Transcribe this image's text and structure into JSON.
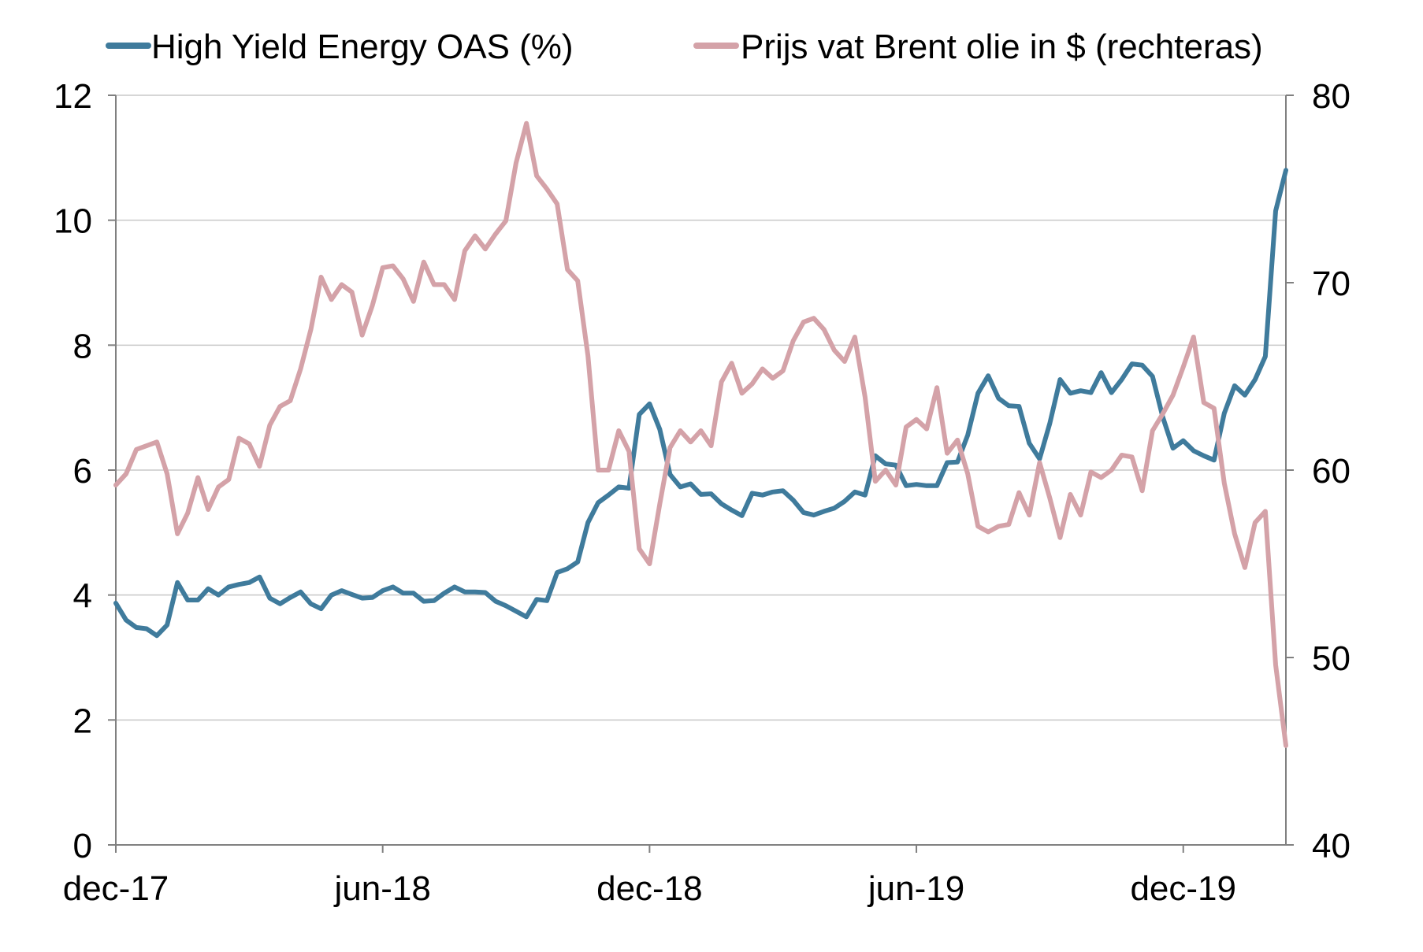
{
  "chart_data": {
    "type": "line",
    "legend_position": "top",
    "grid": true,
    "x_tick_labels": [
      "dec-17",
      "jun-18",
      "dec-18",
      "jun-19",
      "dec-19"
    ],
    "x_tick_weeks": [
      0,
      26,
      52,
      78,
      104
    ],
    "x_range_weeks": [
      0,
      114
    ],
    "y_left": {
      "range": [
        0,
        12
      ],
      "ticks": [
        0,
        2,
        4,
        6,
        8,
        10,
        12
      ]
    },
    "y_right": {
      "range": [
        40,
        80
      ],
      "ticks": [
        40,
        50,
        60,
        70,
        80
      ]
    },
    "series": [
      {
        "name": "High Yield Energy OAS (%)",
        "axis": "left",
        "color": "#3f7b9c",
        "values": [
          3.87,
          3.6,
          3.48,
          3.46,
          3.35,
          3.52,
          4.2,
          3.92,
          3.92,
          4.1,
          4.0,
          4.13,
          4.17,
          4.2,
          4.29,
          3.95,
          3.86,
          3.96,
          4.05,
          3.86,
          3.78,
          4.0,
          4.07,
          4.01,
          3.95,
          3.96,
          4.07,
          4.13,
          4.03,
          4.03,
          3.9,
          3.91,
          4.03,
          4.13,
          4.05,
          4.05,
          4.04,
          3.9,
          3.83,
          3.74,
          3.65,
          3.93,
          3.91,
          4.36,
          4.42,
          4.53,
          5.16,
          5.48,
          5.6,
          5.73,
          5.71,
          6.89,
          7.06,
          6.65,
          5.93,
          5.73,
          5.78,
          5.61,
          5.62,
          5.46,
          5.36,
          5.27,
          5.63,
          5.6,
          5.65,
          5.67,
          5.52,
          5.32,
          5.28,
          5.34,
          5.39,
          5.5,
          5.65,
          5.6,
          6.23,
          6.1,
          6.08,
          5.75,
          5.77,
          5.75,
          5.75,
          6.12,
          6.13,
          6.56,
          7.23,
          7.51,
          7.15,
          7.03,
          7.02,
          6.43,
          6.18,
          6.75,
          7.45,
          7.23,
          7.27,
          7.24,
          7.56,
          7.24,
          7.45,
          7.7,
          7.68,
          7.5,
          6.85,
          6.35,
          6.47,
          6.31,
          6.23,
          6.16,
          6.91,
          7.35,
          7.2,
          7.45,
          7.82,
          10.15,
          10.8
        ]
      },
      {
        "name": "Prijs vat Brent olie in $ (rechteras)",
        "axis": "right",
        "color": "#d4a2a8",
        "values": [
          59.2,
          59.8,
          61.1,
          61.3,
          61.5,
          59.8,
          56.6,
          57.7,
          59.6,
          57.9,
          59.1,
          59.5,
          61.7,
          61.4,
          60.2,
          62.4,
          63.4,
          63.7,
          65.4,
          67.5,
          70.3,
          69.1,
          69.9,
          69.5,
          67.2,
          68.8,
          70.8,
          70.9,
          70.2,
          69.0,
          71.1,
          69.9,
          69.9,
          69.1,
          71.7,
          72.5,
          71.8,
          72.6,
          73.3,
          76.4,
          78.5,
          75.7,
          75.0,
          74.2,
          70.7,
          70.1,
          66.1,
          60.0,
          60.0,
          62.1,
          61.0,
          55.8,
          55.0,
          58.2,
          61.2,
          62.1,
          61.5,
          62.1,
          61.3,
          64.7,
          65.7,
          64.1,
          64.6,
          65.4,
          64.9,
          65.3,
          66.9,
          67.9,
          68.1,
          67.5,
          66.4,
          65.8,
          67.1,
          63.9,
          59.4,
          60.0,
          59.2,
          62.3,
          62.7,
          62.2,
          64.4,
          60.9,
          61.6,
          59.8,
          57.0,
          56.7,
          57.0,
          57.1,
          58.8,
          57.6,
          60.4,
          58.5,
          56.4,
          58.7,
          57.6,
          59.9,
          59.6,
          60.0,
          60.8,
          60.7,
          58.9,
          62.1,
          63.0,
          64.0,
          65.5,
          67.1,
          63.6,
          63.3,
          59.3,
          56.6,
          54.8,
          57.2,
          57.8,
          49.6,
          45.3
        ]
      }
    ]
  }
}
